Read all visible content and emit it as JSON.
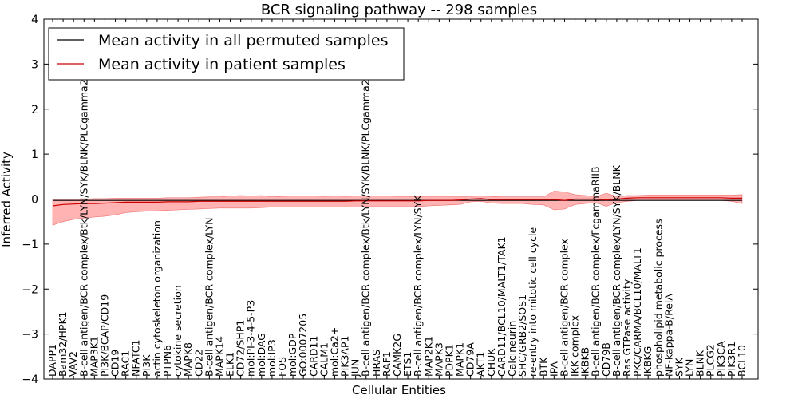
{
  "chart_data": {
    "type": "line",
    "title": "BCR signaling pathway -- 298 samples",
    "xlabel": "Cellular Entities",
    "ylabel": "Inferred Activity",
    "ylim": [
      -4,
      4
    ],
    "yticks": [
      4,
      3,
      2,
      1,
      0,
      -1,
      -2,
      -3,
      -4
    ],
    "ytick_labels": [
      "4",
      "3",
      "2",
      "1",
      "0",
      "−1",
      "−2",
      "−3",
      "−4"
    ],
    "legend": {
      "position": "top-left",
      "entries": [
        {
          "label": "Mean activity in all permuted samples",
          "color": "#000000"
        },
        {
          "label": "Mean activity in patient samples",
          "color": "#cc0000"
        }
      ]
    },
    "categories": [
      "DAPP1",
      "Bam32/HPK1",
      "VAV2",
      "B-cell antigen/BCR complex/Btk/LYN/SYK/BLNK/PLCgamma2",
      "MAP3K1",
      "PI3K/BCAP/CD19",
      "CD19",
      "RAC1",
      "NFATC1",
      "PI3K",
      "actin cytoskeleton organization",
      "PTPN6",
      "cytokine secretion",
      "MAPK8",
      "CD22",
      "B-cell antigen/BCR complex/LYN",
      "MAPK14",
      "ELK1",
      "CD72/SHP1",
      "mol:PI-3-4-5-P3",
      "mol:DAG",
      "mol:IP3",
      "FOS",
      "mol:GDP",
      "GO:0007205",
      "CARD11",
      "CALM1",
      "mol:Ca2+",
      "PIK3AP1",
      "JUN",
      "B-cell antigen/BCR complex/Btk/LYN/SYK/BLNK/PLCgamma2",
      "HRAS",
      "RAF1",
      "CAMK2G",
      "ETS1",
      "B-cell antigen/BCR complex/LYN/SYK",
      "MAP2K1",
      "MAPK3",
      "PDPK1",
      "MAPK1",
      "CD79A",
      "AKT1",
      "CHUK",
      "CARD11/BCL10/MALT1/TAK1",
      "Calcineurin",
      "SHC/GRB2/SOS1",
      "re-entry into mitotic cell cycle",
      "BTK",
      "IPA",
      "B-cell antigen/BCR complex",
      "IKK complex",
      "IKBKB",
      "B-cell antigen/BCR complex/FcgammaRIIB",
      "CD79B",
      "B-cell antigen/BCR complex/LYN/SYK/BLNK",
      "Ras GTPase activity",
      "PKC/CARMA/BCL10/MALT1",
      "IKBKG",
      "phospholipid metabolic process",
      "NF-kappa-B/RelA",
      "SYK",
      "LYN",
      "BLNK",
      "PLCG2",
      "PIK3CA",
      "PIK3R1",
      "BCL10"
    ],
    "series": [
      {
        "name": "Mean activity in all permuted samples",
        "color": "#000000",
        "values": [
          -0.03,
          -0.03,
          -0.03,
          -0.03,
          -0.03,
          -0.03,
          -0.03,
          -0.03,
          -0.03,
          -0.03,
          -0.03,
          -0.03,
          -0.03,
          -0.03,
          -0.03,
          -0.03,
          -0.03,
          -0.03,
          -0.03,
          -0.03,
          -0.03,
          -0.03,
          -0.03,
          -0.03,
          -0.03,
          -0.03,
          -0.03,
          -0.03,
          -0.03,
          -0.03,
          -0.03,
          -0.03,
          -0.03,
          -0.03,
          -0.03,
          -0.03,
          -0.03,
          -0.03,
          -0.03,
          -0.03,
          -0.03,
          -0.03,
          -0.03,
          -0.03,
          -0.03,
          -0.03,
          -0.03,
          -0.03,
          -0.03,
          -0.03,
          -0.03,
          -0.03,
          -0.03,
          -0.03,
          -0.03,
          -0.03,
          -0.03,
          -0.03,
          -0.03,
          -0.03,
          -0.03,
          -0.03,
          -0.03,
          -0.03,
          -0.03,
          -0.03,
          -0.03
        ]
      },
      {
        "name": "Mean activity in patient samples",
        "color": "#cc0000",
        "values": [
          -0.15,
          -0.12,
          -0.11,
          -0.1,
          -0.1,
          -0.09,
          -0.08,
          -0.07,
          -0.07,
          -0.07,
          -0.07,
          -0.06,
          -0.06,
          -0.06,
          -0.05,
          -0.05,
          -0.05,
          -0.05,
          -0.05,
          -0.05,
          -0.05,
          -0.05,
          -0.05,
          -0.05,
          -0.05,
          -0.05,
          -0.05,
          -0.05,
          -0.05,
          -0.04,
          -0.04,
          -0.04,
          -0.04,
          -0.04,
          -0.04,
          -0.04,
          -0.03,
          -0.03,
          -0.03,
          -0.02,
          0.0,
          0.01,
          -0.01,
          -0.01,
          -0.01,
          -0.01,
          -0.01,
          -0.01,
          -0.01,
          -0.03,
          0.0,
          0.0,
          0.0,
          -0.02,
          0.0,
          0.02,
          0.03,
          0.03,
          0.03,
          0.03,
          0.03,
          0.03,
          0.03,
          0.03,
          0.03,
          0.02,
          0.02
        ]
      }
    ],
    "band": {
      "name": "patient sample spread",
      "color": "#ff9a9a",
      "lower": [
        -0.58,
        -0.5,
        -0.45,
        -0.42,
        -0.4,
        -0.38,
        -0.35,
        -0.3,
        -0.28,
        -0.27,
        -0.26,
        -0.25,
        -0.24,
        -0.23,
        -0.22,
        -0.21,
        -0.2,
        -0.2,
        -0.2,
        -0.2,
        -0.19,
        -0.18,
        -0.18,
        -0.18,
        -0.18,
        -0.18,
        -0.18,
        -0.18,
        -0.18,
        -0.18,
        -0.17,
        -0.17,
        -0.17,
        -0.17,
        -0.17,
        -0.17,
        -0.15,
        -0.14,
        -0.13,
        -0.12,
        -0.06,
        -0.05,
        -0.09,
        -0.1,
        -0.1,
        -0.1,
        -0.12,
        -0.13,
        -0.24,
        -0.22,
        -0.12,
        -0.1,
        -0.08,
        -0.16,
        -0.08,
        -0.05,
        -0.03,
        -0.03,
        -0.03,
        -0.03,
        -0.03,
        -0.03,
        -0.03,
        -0.03,
        -0.03,
        -0.05,
        -0.1
      ],
      "upper": [
        0.0,
        0.0,
        0.0,
        0.0,
        0.01,
        0.01,
        0.02,
        0.02,
        0.02,
        0.02,
        0.02,
        0.03,
        0.03,
        0.03,
        0.04,
        0.05,
        0.05,
        0.07,
        0.08,
        0.07,
        0.08,
        0.05,
        0.06,
        0.07,
        0.07,
        0.07,
        0.06,
        0.07,
        0.06,
        0.07,
        0.07,
        0.07,
        0.07,
        0.06,
        0.06,
        0.06,
        0.06,
        0.06,
        0.06,
        0.06,
        0.06,
        0.07,
        0.06,
        0.05,
        0.05,
        0.05,
        0.05,
        0.05,
        0.18,
        0.16,
        0.1,
        0.08,
        0.05,
        0.13,
        0.06,
        0.08,
        0.08,
        0.09,
        0.09,
        0.09,
        0.09,
        0.09,
        0.09,
        0.09,
        0.09,
        0.09,
        0.1
      ]
    }
  }
}
